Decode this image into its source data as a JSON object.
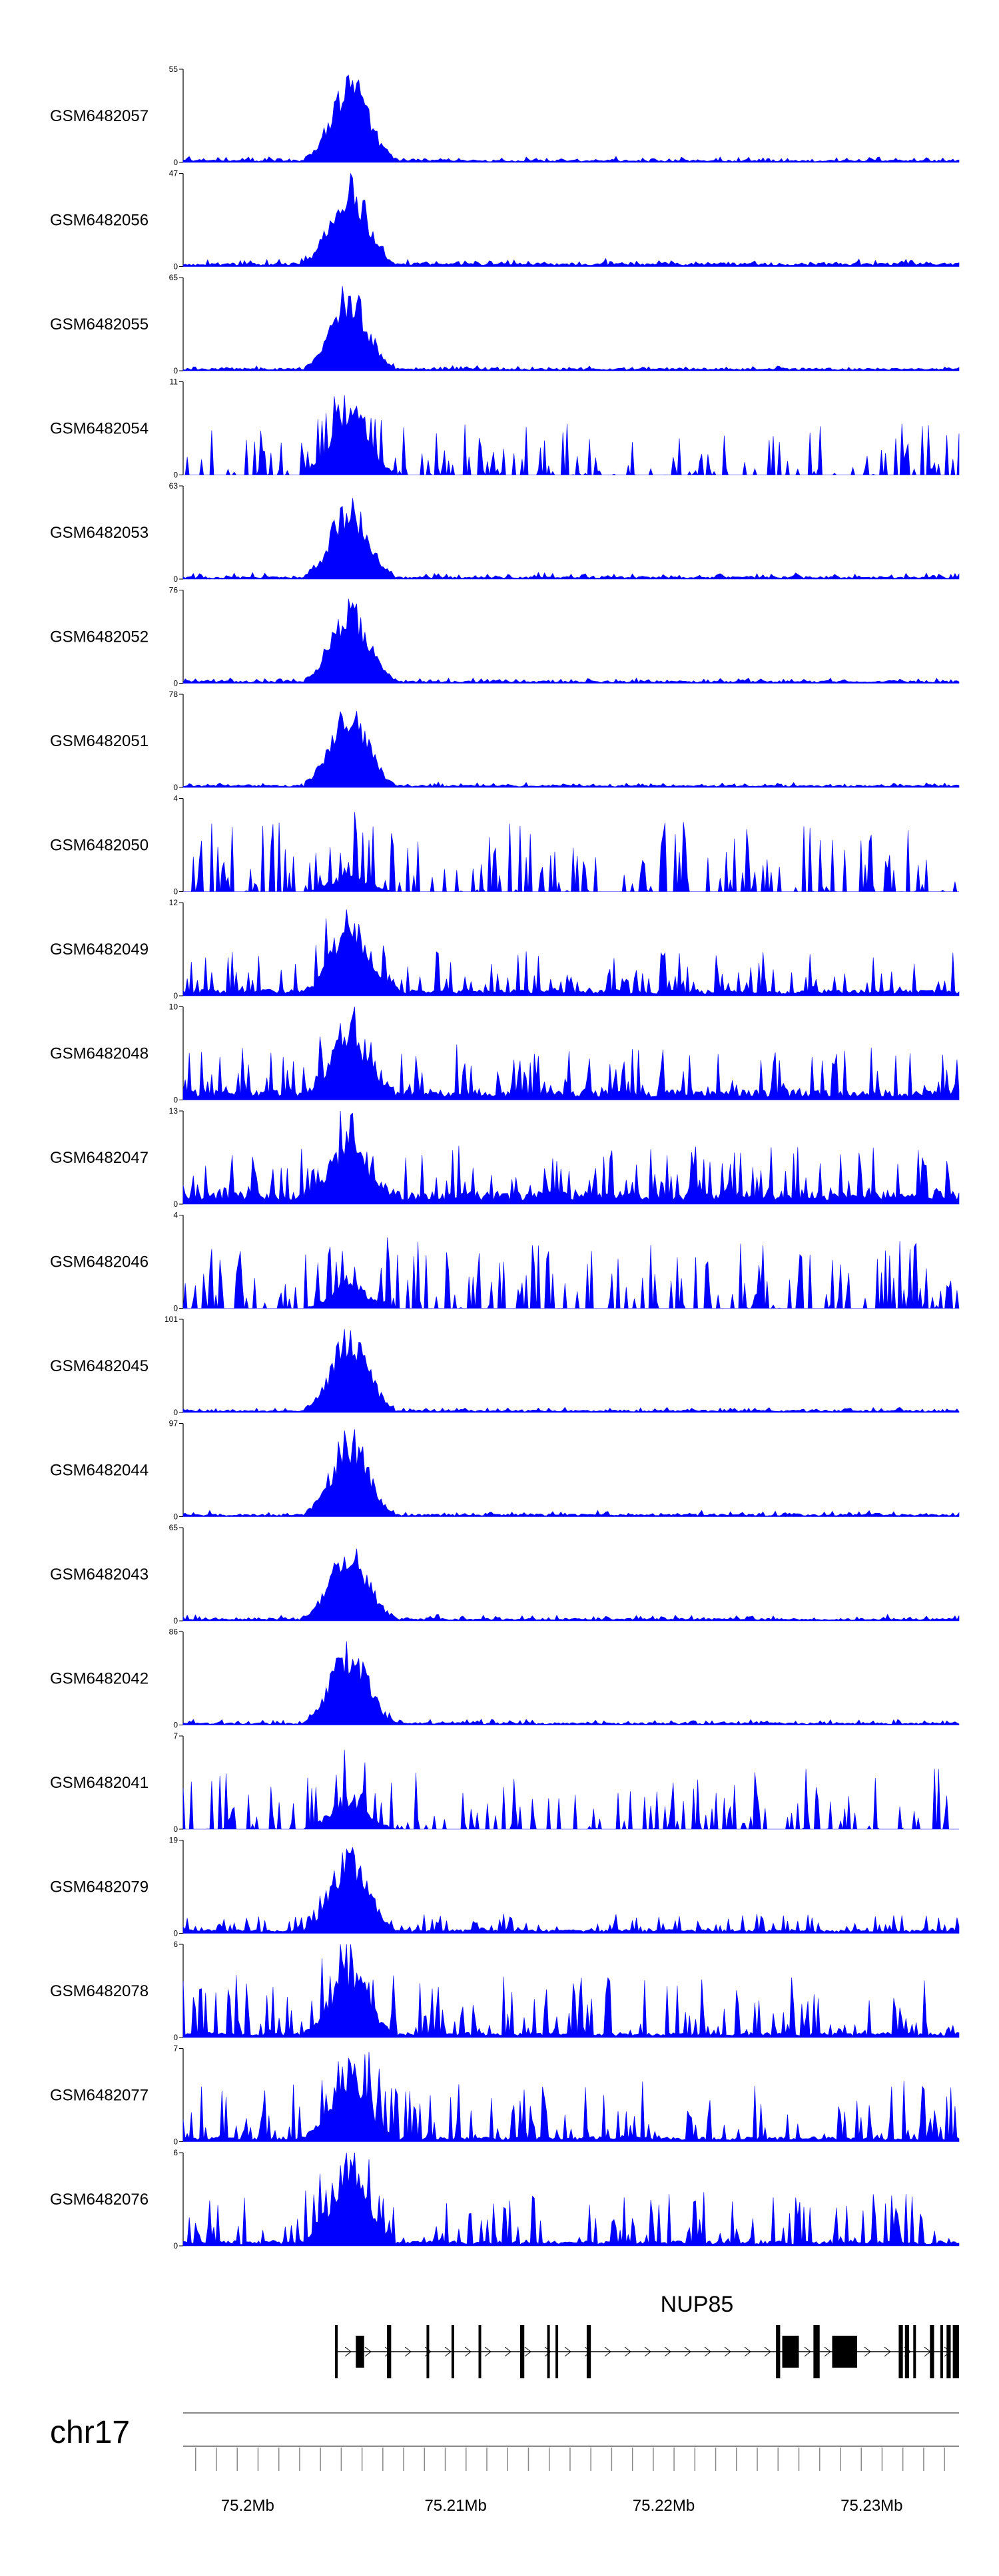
{
  "chart_data": {
    "type": "area",
    "chromosome": "chr17",
    "xlim": [
      75.1969,
      75.2342
    ],
    "tracks": [
      {
        "name": "GSM6482057",
        "ymax": 55,
        "ymin": 0,
        "baseline": 2,
        "noise": 4,
        "peak": 1.0,
        "seed": 11
      },
      {
        "name": "GSM6482056",
        "ymax": 47,
        "ymin": 0,
        "baseline": 3,
        "noise": 5,
        "peak": 1.0,
        "seed": 12
      },
      {
        "name": "GSM6482055",
        "ymax": 65,
        "ymin": 0,
        "baseline": 2,
        "noise": 3,
        "peak": 0.95,
        "seed": 13
      },
      {
        "name": "GSM6482054",
        "ymax": 11,
        "ymin": 0,
        "baseline": 0,
        "noise": 55,
        "peak": 0.9,
        "seed": 14
      },
      {
        "name": "GSM6482053",
        "ymax": 63,
        "ymin": 0,
        "baseline": 2,
        "noise": 5,
        "peak": 0.9,
        "seed": 15
      },
      {
        "name": "GSM6482052",
        "ymax": 76,
        "ymin": 0,
        "baseline": 2,
        "noise": 4,
        "peak": 0.95,
        "seed": 16
      },
      {
        "name": "GSM6482051",
        "ymax": 78,
        "ymin": 0,
        "baseline": 2,
        "noise": 3,
        "peak": 0.95,
        "seed": 17
      },
      {
        "name": "GSM6482050",
        "ymax": 4,
        "ymin": 0,
        "baseline": 0,
        "noise": 75,
        "peak": 0.2,
        "seed": 18
      },
      {
        "name": "GSM6482049",
        "ymax": 12,
        "ymin": 0,
        "baseline": 5,
        "noise": 45,
        "peak": 0.9,
        "seed": 19
      },
      {
        "name": "GSM6482048",
        "ymax": 10,
        "ymin": 0,
        "baseline": 8,
        "noise": 50,
        "peak": 0.8,
        "seed": 20
      },
      {
        "name": "GSM6482047",
        "ymax": 13,
        "ymin": 0,
        "baseline": 10,
        "noise": 50,
        "peak": 0.7,
        "seed": 21
      },
      {
        "name": "GSM6482046",
        "ymax": 4,
        "ymin": 0,
        "baseline": 0,
        "noise": 75,
        "peak": 0.3,
        "seed": 22
      },
      {
        "name": "GSM6482045",
        "ymax": 101,
        "ymin": 0,
        "baseline": 2,
        "noise": 3,
        "peak": 0.95,
        "seed": 23
      },
      {
        "name": "GSM6482044",
        "ymax": 97,
        "ymin": 0,
        "baseline": 2,
        "noise": 4,
        "peak": 0.95,
        "seed": 24
      },
      {
        "name": "GSM6482043",
        "ymax": 65,
        "ymin": 0,
        "baseline": 2,
        "noise": 5,
        "peak": 0.9,
        "seed": 25
      },
      {
        "name": "GSM6482042",
        "ymax": 86,
        "ymin": 0,
        "baseline": 2,
        "noise": 4,
        "peak": 0.95,
        "seed": 26
      },
      {
        "name": "GSM6482041",
        "ymax": 7,
        "ymin": 0,
        "baseline": 0,
        "noise": 65,
        "peak": 0.4,
        "seed": 27
      },
      {
        "name": "GSM6482079",
        "ymax": 19,
        "ymin": 0,
        "baseline": 3,
        "noise": 18,
        "peak": 0.95,
        "seed": 28
      },
      {
        "name": "GSM6482078",
        "ymax": 6,
        "ymin": 0,
        "baseline": 4,
        "noise": 65,
        "peak": 0.8,
        "seed": 29
      },
      {
        "name": "GSM6482077",
        "ymax": 7,
        "ymin": 0,
        "baseline": 4,
        "noise": 60,
        "peak": 0.85,
        "seed": 30
      },
      {
        "name": "GSM6482076",
        "ymax": 6,
        "ymin": 0,
        "baseline": 4,
        "noise": 55,
        "peak": 1.0,
        "seed": 31
      }
    ],
    "peak_region": [
      75.2035,
      75.2063
    ],
    "gene": {
      "name": "NUP85",
      "start": 75.2042,
      "end": 75.2342,
      "strand": "+",
      "exons": [
        [
          75.2042,
          75.2043
        ],
        [
          75.2052,
          75.2056
        ],
        [
          75.2067,
          75.2069
        ],
        [
          75.2086,
          75.2087
        ],
        [
          75.2098,
          75.2099
        ],
        [
          75.2111,
          75.2112
        ],
        [
          75.2131,
          75.2133
        ],
        [
          75.2144,
          75.2145
        ],
        [
          75.2148,
          75.2149
        ],
        [
          75.2163,
          75.2165
        ],
        [
          75.2254,
          75.2256
        ],
        [
          75.2257,
          75.2265
        ],
        [
          75.2272,
          75.2275
        ],
        [
          75.2281,
          75.2293
        ],
        [
          75.2313,
          75.2315
        ],
        [
          75.2316,
          75.2318
        ],
        [
          75.232,
          75.2321
        ],
        [
          75.2328,
          75.233
        ],
        [
          75.2333,
          75.2334
        ],
        [
          75.2336,
          75.2338
        ],
        [
          75.2339,
          75.2342
        ]
      ]
    },
    "ticks": [
      75.2,
      75.21,
      75.22,
      75.23
    ],
    "tick_labels": [
      "75.2Mb",
      "75.21Mb",
      "75.22Mb",
      "75.23Mb"
    ],
    "colors": {
      "signal": "#0000ff",
      "axis": "#000000",
      "gene": "#000000",
      "ideogram": "#888888"
    }
  }
}
